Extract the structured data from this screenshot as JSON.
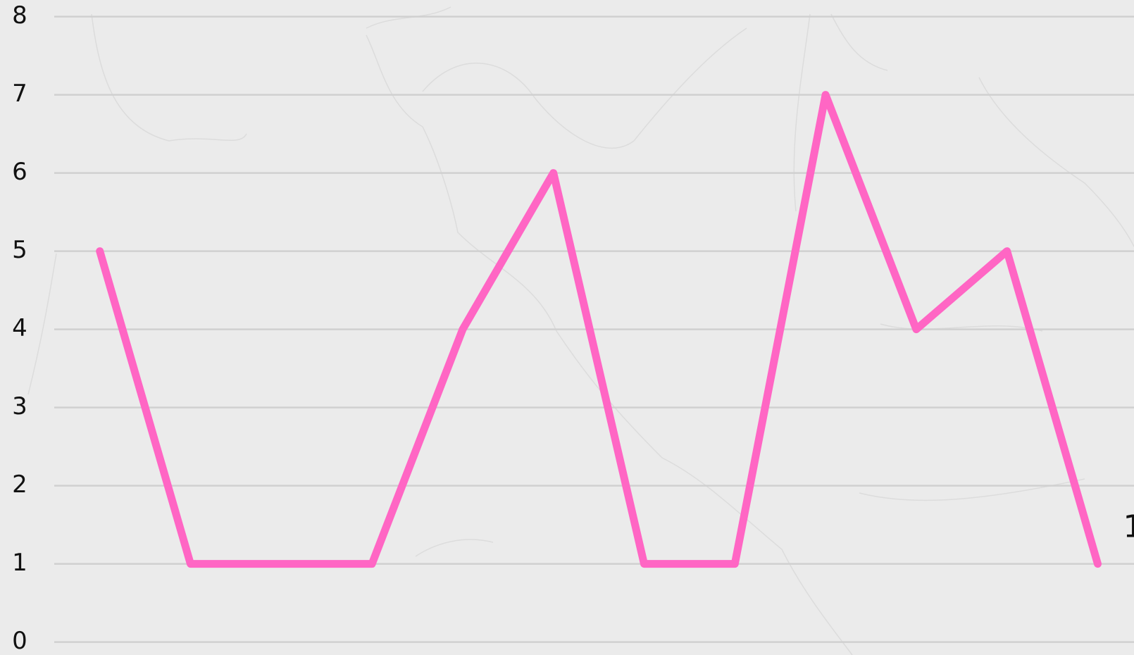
{
  "chart_data": {
    "type": "line",
    "series": [
      {
        "color": "#ff66c4",
        "values": [
          5,
          1,
          1,
          1,
          4,
          6,
          1,
          1,
          7,
          4,
          5,
          1
        ]
      }
    ],
    "ylim": [
      0,
      8
    ],
    "yticks": [
      0,
      1,
      2,
      3,
      4,
      5,
      6,
      7,
      8
    ],
    "grid": true
  }
}
